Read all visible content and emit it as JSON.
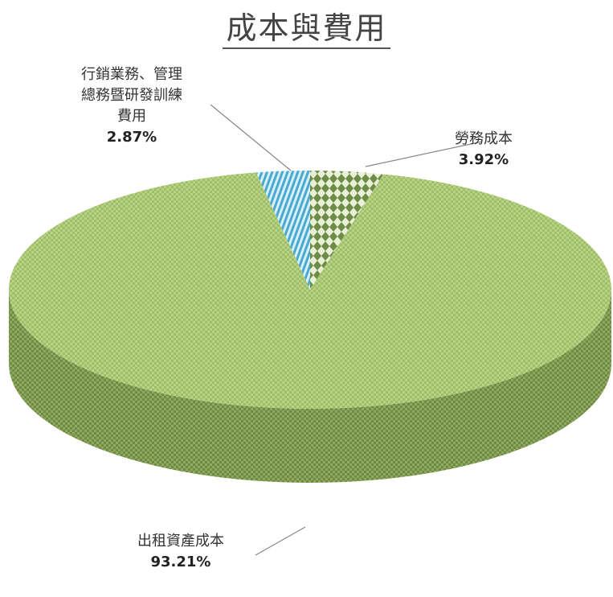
{
  "chart_data": {
    "type": "pie",
    "title": "成本與費用",
    "three_d": true,
    "slices": [
      {
        "label": "勞務成本",
        "value": 3.92,
        "value_label": "3.92%",
        "color": "#7a9a4e",
        "pattern": "diamond"
      },
      {
        "label": "出租資產成本",
        "value": 93.21,
        "value_label": "93.21%",
        "color": "#b2cf7d",
        "pattern": "fine-check"
      },
      {
        "label_lines": [
          "行銷業務、管理",
          "總務暨研發訓練",
          "費用"
        ],
        "value": 2.87,
        "value_label": "2.87%",
        "color": "#5bb8d8",
        "pattern": "diagonal-stripe"
      }
    ]
  }
}
